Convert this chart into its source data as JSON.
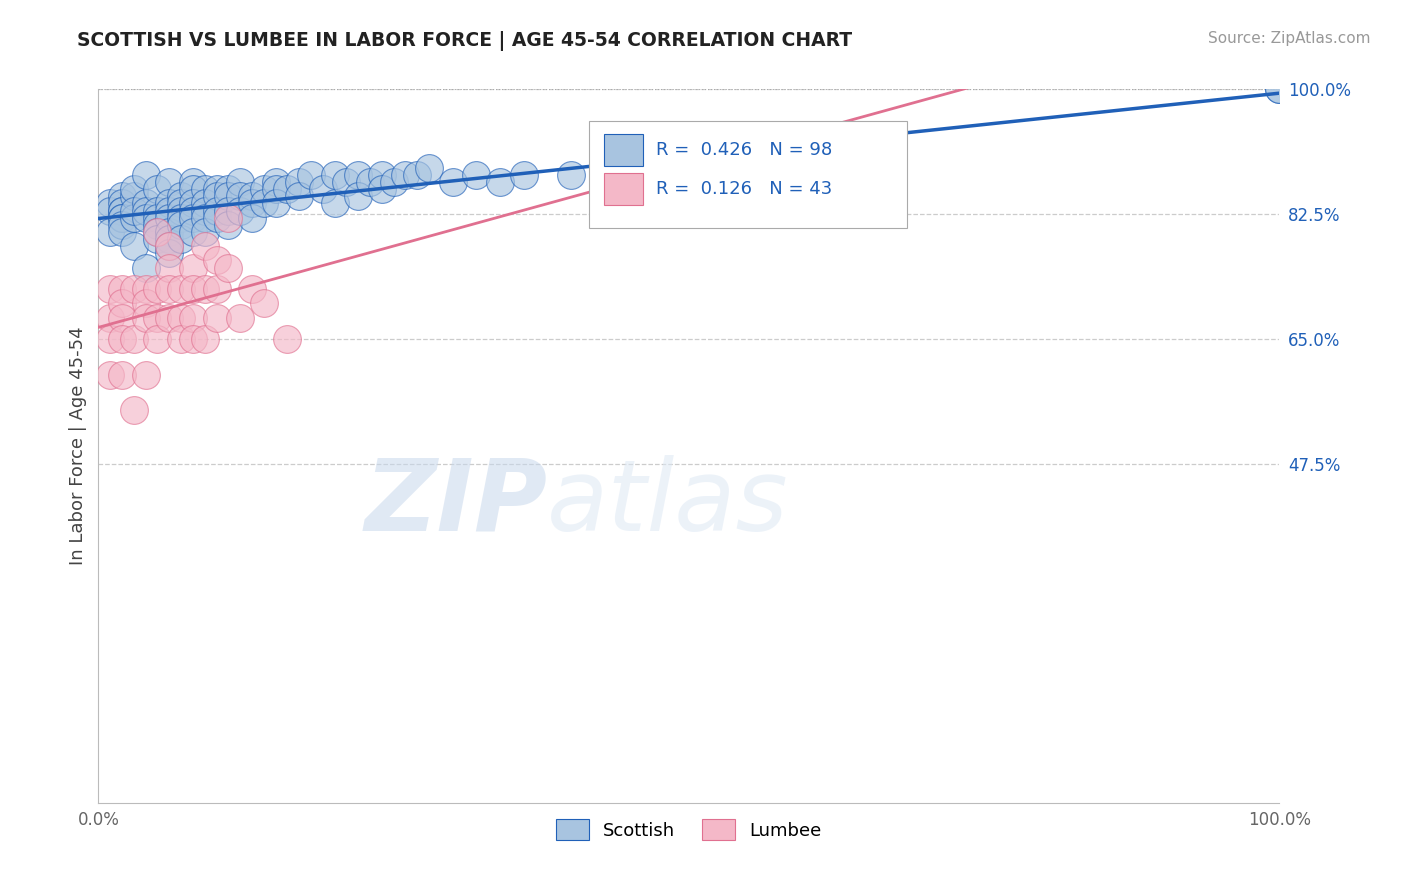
{
  "title": "SCOTTISH VS LUMBEE IN LABOR FORCE | AGE 45-54 CORRELATION CHART",
  "source": "Source: ZipAtlas.com",
  "ylabel": "In Labor Force | Age 45-54",
  "xlim": [
    0,
    100
  ],
  "ylim": [
    0,
    100
  ],
  "xtick_positions": [
    0,
    100
  ],
  "xtick_labels": [
    "0.0%",
    "100.0%"
  ],
  "ytick_vals_right": [
    100.0,
    82.5,
    65.0,
    47.5
  ],
  "ytick_labels_right": [
    "100.0%",
    "82.5%",
    "65.0%",
    "47.5%"
  ],
  "legend_r_scottish": "0.426",
  "legend_n_scottish": "98",
  "legend_r_lumbee": "0.126",
  "legend_n_lumbee": "43",
  "scottish_color": "#a8c4e0",
  "lumbee_color": "#f4b8c8",
  "scottish_line_color": "#2060b8",
  "lumbee_line_color": "#e07090",
  "watermark_zip": "ZIP",
  "watermark_atlas": "atlas",
  "scottish_x": [
    1,
    1,
    1,
    2,
    2,
    2,
    2,
    2,
    2,
    2,
    2,
    3,
    3,
    3,
    3,
    3,
    4,
    4,
    4,
    4,
    4,
    5,
    5,
    5,
    5,
    5,
    5,
    6,
    6,
    6,
    6,
    6,
    6,
    6,
    6,
    7,
    7,
    7,
    7,
    7,
    7,
    8,
    8,
    8,
    8,
    8,
    8,
    9,
    9,
    9,
    9,
    9,
    10,
    10,
    10,
    10,
    11,
    11,
    11,
    11,
    12,
    12,
    12,
    13,
    13,
    13,
    14,
    14,
    15,
    15,
    15,
    16,
    17,
    17,
    18,
    19,
    20,
    20,
    21,
    22,
    22,
    23,
    24,
    24,
    25,
    26,
    27,
    28,
    30,
    32,
    34,
    36,
    40,
    45,
    55,
    65,
    100,
    100
  ],
  "scottish_y": [
    84,
    83,
    80,
    85,
    84,
    83,
    83,
    82,
    82,
    81,
    80,
    85,
    82,
    78,
    86,
    83,
    88,
    84,
    83,
    75,
    82,
    86,
    83,
    82,
    81,
    80,
    79,
    87,
    84,
    83,
    82,
    80,
    79,
    78,
    77,
    85,
    84,
    83,
    82,
    81,
    79,
    87,
    86,
    84,
    83,
    82,
    80,
    86,
    84,
    83,
    82,
    80,
    86,
    85,
    83,
    82,
    86,
    85,
    83,
    81,
    87,
    85,
    83,
    85,
    84,
    82,
    86,
    84,
    87,
    86,
    84,
    86,
    87,
    85,
    88,
    86,
    88,
    84,
    87,
    88,
    85,
    87,
    88,
    86,
    87,
    88,
    88,
    89,
    87,
    88,
    87,
    88,
    88,
    89,
    89,
    89,
    100,
    100
  ],
  "lumbee_x": [
    1,
    1,
    1,
    1,
    2,
    2,
    2,
    2,
    2,
    3,
    3,
    3,
    4,
    4,
    4,
    4,
    5,
    5,
    5,
    5,
    6,
    6,
    6,
    6,
    7,
    7,
    7,
    8,
    8,
    8,
    8,
    9,
    9,
    9,
    10,
    10,
    10,
    11,
    11,
    12,
    13,
    14,
    16
  ],
  "lumbee_y": [
    72,
    68,
    65,
    60,
    72,
    70,
    68,
    65,
    60,
    72,
    65,
    55,
    72,
    70,
    68,
    60,
    80,
    72,
    68,
    65,
    78,
    75,
    72,
    68,
    72,
    68,
    65,
    75,
    72,
    68,
    65,
    78,
    72,
    65,
    76,
    72,
    68,
    82,
    75,
    68,
    72,
    70,
    65
  ]
}
